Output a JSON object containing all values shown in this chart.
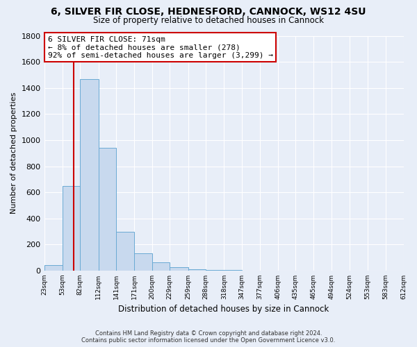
{
  "title": "6, SILVER FIR CLOSE, HEDNESFORD, CANNOCK, WS12 4SU",
  "subtitle": "Size of property relative to detached houses in Cannock",
  "xlabel": "Distribution of detached houses by size in Cannock",
  "ylabel": "Number of detached properties",
  "bin_edges": [
    23,
    53,
    82,
    112,
    141,
    171,
    200,
    229,
    259,
    288,
    318,
    347,
    377,
    406,
    435,
    465,
    494,
    524,
    553,
    583,
    612
  ],
  "bar_heights": [
    40,
    650,
    1470,
    940,
    295,
    130,
    65,
    25,
    10,
    5,
    5,
    0,
    0,
    0,
    0,
    0,
    0,
    0,
    0,
    0
  ],
  "bar_color": "#c8d9ee",
  "bar_edge_color": "#6aaad4",
  "property_size": 71,
  "red_line_color": "#cc0000",
  "ylim": [
    0,
    1800
  ],
  "yticks": [
    0,
    200,
    400,
    600,
    800,
    1000,
    1200,
    1400,
    1600,
    1800
  ],
  "annotation_line1": "6 SILVER FIR CLOSE: 71sqm",
  "annotation_line2": "← 8% of detached houses are smaller (278)",
  "annotation_line3": "92% of semi-detached houses are larger (3,299) →",
  "annotation_box_color": "#ffffff",
  "annotation_box_edge": "#cc0000",
  "footer_line1": "Contains HM Land Registry data © Crown copyright and database right 2024.",
  "footer_line2": "Contains public sector information licensed under the Open Government Licence v3.0.",
  "bg_color": "#e8eef8",
  "grid_color": "#ffffff"
}
